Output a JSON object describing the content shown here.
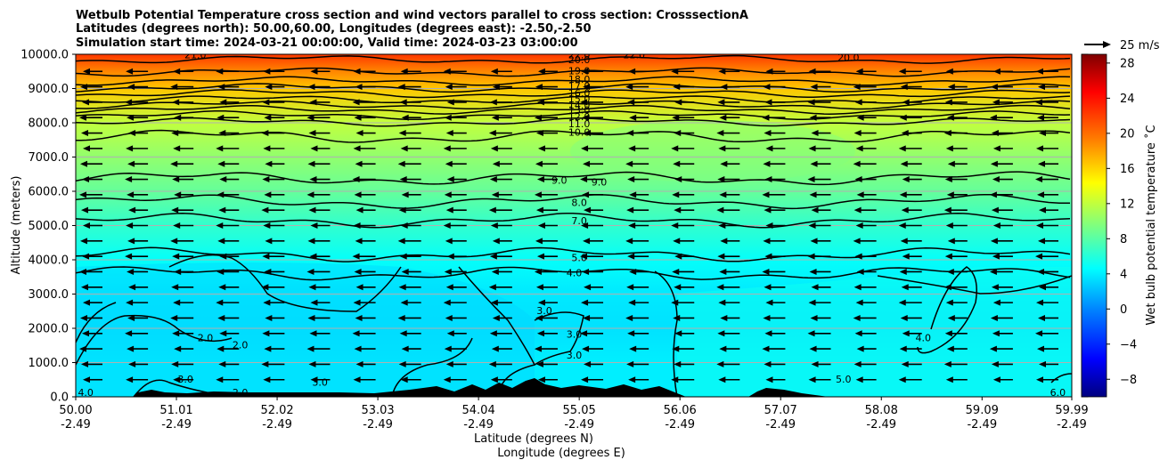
{
  "figure": {
    "title_lines": [
      "Wetbulb Potential Temperature cross section and wind vectors parallel to cross section: CrosssectionA",
      "Latitudes (degrees north): 50.00,60.00, Longitudes (degrees east): -2.50,-2.50",
      "Simulation start time: 2024-03-21 00:00:00, Valid time: 2024-03-23 03:00:00"
    ],
    "quiver_key": "25 m/s"
  },
  "chart_data": {
    "type": "heatmap",
    "ylabel": "Altitude (meters)",
    "xlabel": "Latitude (degrees N)",
    "xlabel2": "Longitude (degrees E)",
    "ylim": [
      0,
      10000
    ],
    "xlim": [
      50.0,
      59.99
    ],
    "yticks": [
      "0.0",
      "1000.0",
      "2000.0",
      "3000.0",
      "4000.0",
      "5000.0",
      "6000.0",
      "7000.0",
      "8000.0",
      "9000.0",
      "10000.0"
    ],
    "ytick_values": [
      0,
      1000,
      2000,
      3000,
      4000,
      5000,
      6000,
      7000,
      8000,
      9000,
      10000
    ],
    "xticks": [
      {
        "lat": "50.00",
        "lon": "-2.49",
        "value": 50.0
      },
      {
        "lat": "51.01",
        "lon": "-2.49",
        "value": 51.01
      },
      {
        "lat": "52.02",
        "lon": "-2.49",
        "value": 52.02
      },
      {
        "lat": "53.03",
        "lon": "-2.49",
        "value": 53.03
      },
      {
        "lat": "54.04",
        "lon": "-2.49",
        "value": 54.04
      },
      {
        "lat": "55.05",
        "lon": "-2.49",
        "value": 55.05
      },
      {
        "lat": "56.06",
        "lon": "-2.49",
        "value": 56.06
      },
      {
        "lat": "57.07",
        "lon": "-2.49",
        "value": 57.07
      },
      {
        "lat": "58.08",
        "lon": "-2.49",
        "value": 58.08
      },
      {
        "lat": "59.09",
        "lon": "-2.49",
        "value": 59.09
      },
      {
        "lat": "59.99",
        "lon": "-2.49",
        "value": 59.99
      }
    ],
    "colorbar": {
      "label": "Wet bulb potential temperature ˚C",
      "min": -10,
      "max": 29,
      "ticks": [
        "−8",
        "−4",
        "0",
        "4",
        "8",
        "12",
        "16",
        "20",
        "24",
        "28"
      ],
      "tick_values": [
        -8,
        -4,
        0,
        4,
        8,
        12,
        16,
        20,
        24,
        28
      ]
    },
    "vertical_profile": [
      {
        "z": 0,
        "t": 4
      },
      {
        "z": 1000,
        "t": 4
      },
      {
        "z": 2000,
        "t": 3.5
      },
      {
        "z": 3000,
        "t": 3.8
      },
      {
        "z": 4000,
        "t": 4.8
      },
      {
        "z": 5000,
        "t": 6.5
      },
      {
        "z": 6000,
        "t": 8.5
      },
      {
        "z": 7000,
        "t": 10.2
      },
      {
        "z": 8000,
        "t": 12
      },
      {
        "z": 9000,
        "t": 16.5
      },
      {
        "z": 9500,
        "t": 19
      },
      {
        "z": 10000,
        "t": 22
      }
    ],
    "contour_levels": [
      {
        "value": 20.0,
        "z": 9850
      },
      {
        "value": 19.0,
        "z": 9480
      },
      {
        "value": 18.0,
        "z": 9220
      },
      {
        "value": 17.0,
        "z": 9020
      },
      {
        "value": 16.0,
        "z": 8850
      },
      {
        "value": 15.0,
        "z": 8680
      },
      {
        "value": 14.0,
        "z": 8520
      },
      {
        "value": 13.0,
        "z": 8380
      },
      {
        "value": 12.0,
        "z": 8220
      },
      {
        "value": 11.0,
        "z": 8020
      },
      {
        "value": 10.0,
        "z": 7600
      },
      {
        "value": 9.0,
        "z": 6380
      },
      {
        "value": 8.0,
        "z": 5700
      },
      {
        "value": 7.0,
        "z": 5150
      },
      {
        "value": 5.0,
        "z": 4150
      },
      {
        "value": 4.0,
        "z": 3600
      }
    ],
    "contour_labels": [
      {
        "text": "22.0",
        "x": 55.05,
        "z": 9960
      },
      {
        "text": "20.0",
        "x": 55.05,
        "z": 9820
      },
      {
        "text": "19.0",
        "x": 55.05,
        "z": 9500
      },
      {
        "text": "18.0",
        "x": 55.05,
        "z": 9250
      },
      {
        "text": "17.0",
        "x": 55.05,
        "z": 9050
      },
      {
        "text": "16.0",
        "x": 55.05,
        "z": 8850
      },
      {
        "text": "15.0",
        "x": 55.05,
        "z": 8680
      },
      {
        "text": "14.0",
        "x": 55.05,
        "z": 8500
      },
      {
        "text": "13.0",
        "x": 55.05,
        "z": 8350
      },
      {
        "text": "12.0",
        "x": 55.05,
        "z": 8150
      },
      {
        "text": "11.0",
        "x": 55.05,
        "z": 7950
      },
      {
        "text": "10.0",
        "x": 55.05,
        "z": 7700
      },
      {
        "text": "9.0",
        "x": 54.85,
        "z": 6300
      },
      {
        "text": "9.0",
        "x": 55.25,
        "z": 6250
      },
      {
        "text": "8.0",
        "x": 55.05,
        "z": 5650
      },
      {
        "text": "7.0",
        "x": 55.05,
        "z": 5120
      },
      {
        "text": "5.0",
        "x": 55.05,
        "z": 4040
      },
      {
        "text": "4.0",
        "x": 55.0,
        "z": 3600
      },
      {
        "text": "3.0",
        "x": 54.7,
        "z": 2500
      },
      {
        "text": "3.0",
        "x": 55.0,
        "z": 1800
      },
      {
        "text": "3.0",
        "x": 55.0,
        "z": 1200
      },
      {
        "text": "2.0",
        "x": 51.3,
        "z": 1700
      },
      {
        "text": "2.0",
        "x": 51.65,
        "z": 1500
      },
      {
        "text": "2.0",
        "x": 51.65,
        "z": 100
      },
      {
        "text": "3.0",
        "x": 51.1,
        "z": 500
      },
      {
        "text": "3.0",
        "x": 52.45,
        "z": 400
      },
      {
        "text": "4.0",
        "x": 50.1,
        "z": 100
      },
      {
        "text": "4.0",
        "x": 58.5,
        "z": 1700
      },
      {
        "text": "5.0",
        "x": 57.7,
        "z": 500
      },
      {
        "text": "6.0",
        "x": 59.85,
        "z": 100
      },
      {
        "text": "22.0",
        "x": 55.6,
        "z": 9960
      },
      {
        "text": "20.0",
        "x": 57.75,
        "z": 9880
      },
      {
        "text": "21.0",
        "x": 51.2,
        "z": 9960
      }
    ],
    "wind_vectors": {
      "direction": "toward decreasing latitude",
      "speed_ms": 25
    }
  }
}
